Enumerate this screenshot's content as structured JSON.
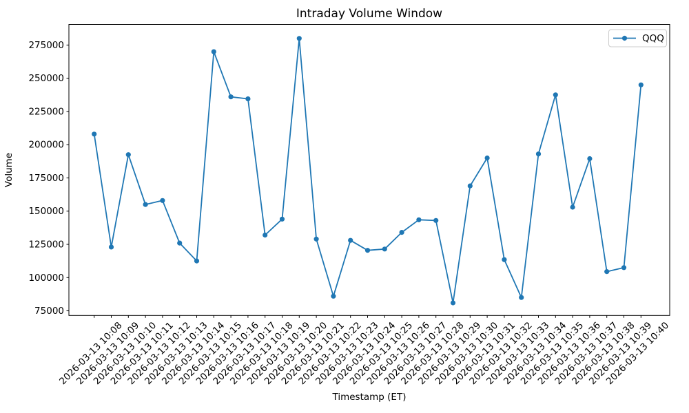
{
  "chart_data": {
    "type": "line",
    "title": "Intraday Volume Window",
    "xlabel": "Timestamp (ET)",
    "ylabel": "Volume",
    "grid": false,
    "legend_position": "upper right",
    "x_tick_rotation": 45,
    "ylim": [
      71500,
      290500
    ],
    "yticks": [
      75000,
      100000,
      125000,
      150000,
      175000,
      200000,
      225000,
      250000,
      275000
    ],
    "x": [
      "2026-03-13 10:08",
      "2026-03-13 10:09",
      "2026-03-13 10:10",
      "2026-03-13 10:11",
      "2026-03-13 10:12",
      "2026-03-13 10:13",
      "2026-03-13 10:14",
      "2026-03-13 10:15",
      "2026-03-13 10:16",
      "2026-03-13 10:17",
      "2026-03-13 10:18",
      "2026-03-13 10:19",
      "2026-03-13 10:20",
      "2026-03-13 10:21",
      "2026-03-13 10:22",
      "2026-03-13 10:23",
      "2026-03-13 10:24",
      "2026-03-13 10:25",
      "2026-03-13 10:26",
      "2026-03-13 10:27",
      "2026-03-13 10:28",
      "2026-03-13 10:29",
      "2026-03-13 10:30",
      "2026-03-13 10:31",
      "2026-03-13 10:32",
      "2026-03-13 10:33",
      "2026-03-13 10:34",
      "2026-03-13 10:35",
      "2026-03-13 10:36",
      "2026-03-13 10:37",
      "2026-03-13 10:38",
      "2026-03-13 10:39",
      "2026-03-13 10:40"
    ],
    "series": [
      {
        "name": "QQQ",
        "color": "#1f77b4",
        "marker": "circle",
        "values": [
          208000,
          123000,
          192500,
          155000,
          158000,
          126000,
          112500,
          270000,
          236000,
          234500,
          132000,
          144000,
          280000,
          129000,
          86000,
          128000,
          120500,
          121500,
          134000,
          143500,
          143000,
          81000,
          169000,
          190000,
          113500,
          85000,
          193000,
          237500,
          153000,
          189500,
          104500,
          107500,
          245000
        ]
      }
    ]
  }
}
